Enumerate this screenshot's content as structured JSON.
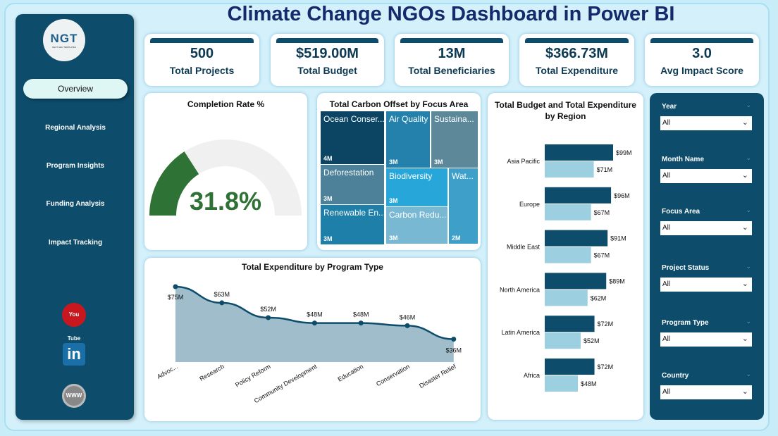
{
  "title": "Climate Change NGOs Dashboard in Power BI",
  "logo": {
    "text": "NGT",
    "tagline": "NEXT GEN TEMPLATES"
  },
  "nav": [
    {
      "label": "Overview",
      "active": true
    },
    {
      "label": "Regional Analysis"
    },
    {
      "label": "Program Insights"
    },
    {
      "label": "Funding Analysis"
    },
    {
      "label": "Impact Tracking"
    }
  ],
  "social": {
    "youtube": "You Tube",
    "linkedin": "in",
    "web": "WWW"
  },
  "kpis": [
    {
      "value": "500",
      "label": "Total Projects"
    },
    {
      "value": "$519.00M",
      "label": "Total Budget"
    },
    {
      "value": "13M",
      "label": "Total Beneficiaries"
    },
    {
      "value": "$366.73M",
      "label": "Total Expenditure"
    },
    {
      "value": "3.0",
      "label": "Avg Impact Score"
    }
  ],
  "colors": {
    "sidebar": "#0d4d6b",
    "gauge": "#2f7236",
    "budget": "#0d4d6b",
    "expenditure": "#9ccfe0",
    "area": "#9fbdcb"
  },
  "chart_data": [
    {
      "type": "gauge",
      "title": "Completion Rate %",
      "value": 31.8,
      "value_label": "31.8%",
      "range": [
        0,
        100
      ]
    },
    {
      "type": "treemap",
      "title": "Total Carbon Offset by Focus Area",
      "items": [
        {
          "label": "Ocean Conser...",
          "value_label": "4M",
          "color": "#0b4563"
        },
        {
          "label": "Deforestation",
          "value_label": "3M",
          "color": "#4c8199"
        },
        {
          "label": "Renewable En...",
          "value_label": "3M",
          "color": "#1e7fa8"
        },
        {
          "label": "Air Quality",
          "value_label": "3M",
          "color": "#2381ab"
        },
        {
          "label": "Sustaina...",
          "value_label": "3M",
          "color": "#5d8899"
        },
        {
          "label": "Biodiversity",
          "value_label": "3M",
          "color": "#27a6d9"
        },
        {
          "label": "Carbon Redu...",
          "value_label": "3M",
          "color": "#79b8d2"
        },
        {
          "label": "Wat...",
          "value_label": "2M",
          "color": "#3e9fc9"
        }
      ]
    },
    {
      "type": "bar",
      "orientation": "horizontal",
      "title": "Total Budget and Total Expenditure by Region",
      "categories": [
        "Asia Pacific",
        "Europe",
        "Middle East",
        "North America",
        "Latin America",
        "Africa"
      ],
      "series": [
        {
          "values": [
            99,
            96,
            91,
            89,
            72,
            72
          ],
          "labels": [
            "$99M",
            "$96M",
            "$91M",
            "$89M",
            "$72M",
            "$72M"
          ]
        },
        {
          "values": [
            71,
            67,
            67,
            62,
            52,
            48
          ],
          "labels": [
            "$71M",
            "$67M",
            "$67M",
            "$62M",
            "$52M",
            "$48M"
          ]
        }
      ]
    },
    {
      "type": "area",
      "title": "Total Expenditure by Program Type",
      "categories": [
        "Advoc...",
        "Research",
        "Policy Reform",
        "Community Development",
        "Education",
        "Conservation",
        "Disaster Relief"
      ],
      "values": [
        75,
        63,
        52,
        48,
        48,
        46,
        36
      ],
      "labels": [
        "$75M",
        "$63M",
        "$52M",
        "$48M",
        "$48M",
        "$46M",
        "$36M"
      ]
    }
  ],
  "filters": [
    {
      "label": "Year",
      "value": "All"
    },
    {
      "label": "Month Name",
      "value": "All"
    },
    {
      "label": "Focus Area",
      "value": "All"
    },
    {
      "label": "Project Status",
      "value": "All"
    },
    {
      "label": "Program Type",
      "value": "All"
    },
    {
      "label": "Country",
      "value": "All"
    }
  ]
}
